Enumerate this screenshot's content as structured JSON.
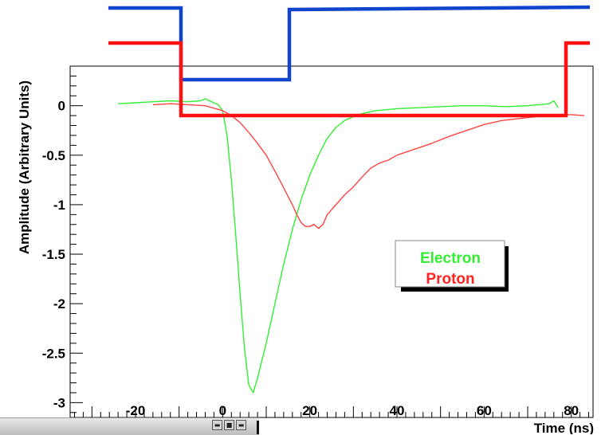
{
  "chart_data": {
    "type": "line",
    "title": "",
    "xlabel": "Time (ns)",
    "ylabel": "Amplitude (Arbitrary Units)",
    "xlim": [
      -35,
      85
    ],
    "ylim": [
      -3.15,
      0.4
    ],
    "x_ticks": [
      -20,
      0,
      20,
      40,
      60,
      80
    ],
    "x_tick_labels": [
      "-20",
      "0",
      "20",
      "40",
      "60",
      "80"
    ],
    "y_ticks": [
      0,
      -0.5,
      -1,
      -1.5,
      -2,
      -2.5,
      -3
    ],
    "y_tick_labels": [
      "0",
      "-0.5",
      "-1",
      "-1.5",
      "-2",
      "-2.5",
      "-3"
    ],
    "grid": false,
    "legend_position": "right",
    "series": [
      {
        "name": "Electron",
        "color": "#33ee33",
        "points": [
          [
            -24,
            0.02
          ],
          [
            -20,
            0.03
          ],
          [
            -16,
            0.04
          ],
          [
            -12,
            0.05
          ],
          [
            -8,
            0.04
          ],
          [
            -5,
            0.05
          ],
          [
            -4,
            0.07
          ],
          [
            -3,
            0.05
          ],
          [
            -2,
            0.03
          ],
          [
            -1,
            0.01
          ],
          [
            0,
            -0.05
          ],
          [
            1,
            -0.3
          ],
          [
            2,
            -0.75
          ],
          [
            3,
            -1.3
          ],
          [
            4,
            -1.9
          ],
          [
            5,
            -2.45
          ],
          [
            6,
            -2.82
          ],
          [
            7,
            -2.9
          ],
          [
            8,
            -2.75
          ],
          [
            10,
            -2.4
          ],
          [
            12,
            -2.0
          ],
          [
            14,
            -1.6
          ],
          [
            16,
            -1.25
          ],
          [
            18,
            -0.95
          ],
          [
            20,
            -0.7
          ],
          [
            22,
            -0.5
          ],
          [
            24,
            -0.33
          ],
          [
            26,
            -0.22
          ],
          [
            28,
            -0.15
          ],
          [
            30,
            -0.11
          ],
          [
            32,
            -0.08
          ],
          [
            35,
            -0.05
          ],
          [
            40,
            -0.03
          ],
          [
            45,
            -0.02
          ],
          [
            50,
            -0.01
          ],
          [
            55,
            0.0
          ],
          [
            60,
            0.0
          ],
          [
            65,
            -0.01
          ],
          [
            70,
            0.0
          ],
          [
            75,
            0.02
          ],
          [
            76,
            0.05
          ],
          [
            77,
            -0.02
          ]
        ]
      },
      {
        "name": "Proton",
        "color": "#ff4444",
        "points": [
          [
            -16,
            0.01
          ],
          [
            -12,
            0.02
          ],
          [
            -8,
            0.01
          ],
          [
            -4,
            0.0
          ],
          [
            0,
            -0.05
          ],
          [
            2,
            -0.1
          ],
          [
            4,
            -0.17
          ],
          [
            6,
            -0.27
          ],
          [
            8,
            -0.38
          ],
          [
            10,
            -0.5
          ],
          [
            12,
            -0.66
          ],
          [
            14,
            -0.83
          ],
          [
            16,
            -1.0
          ],
          [
            17,
            -1.1
          ],
          [
            18,
            -1.18
          ],
          [
            19,
            -1.22
          ],
          [
            20,
            -1.22
          ],
          [
            21,
            -1.2
          ],
          [
            22,
            -1.24
          ],
          [
            23,
            -1.2
          ],
          [
            24,
            -1.1
          ],
          [
            26,
            -1.0
          ],
          [
            28,
            -0.9
          ],
          [
            30,
            -0.82
          ],
          [
            32,
            -0.72
          ],
          [
            34,
            -0.63
          ],
          [
            36,
            -0.58
          ],
          [
            38,
            -0.55
          ],
          [
            40,
            -0.5
          ],
          [
            44,
            -0.44
          ],
          [
            48,
            -0.38
          ],
          [
            52,
            -0.31
          ],
          [
            56,
            -0.25
          ],
          [
            60,
            -0.19
          ],
          [
            64,
            -0.15
          ],
          [
            68,
            -0.13
          ],
          [
            72,
            -0.11
          ],
          [
            76,
            -0.09
          ],
          [
            80,
            -0.09
          ],
          [
            83,
            -0.1
          ]
        ]
      }
    ],
    "overlay_bands": [
      {
        "name": "blue-gate-level",
        "color": "#1144cc"
      },
      {
        "name": "red-gate-level",
        "color": "#ff1111"
      }
    ]
  },
  "legend": {
    "entries": [
      {
        "label": "Electron",
        "color": "#33ee33"
      },
      {
        "label": "Proton",
        "color": "#ff2222"
      }
    ]
  }
}
